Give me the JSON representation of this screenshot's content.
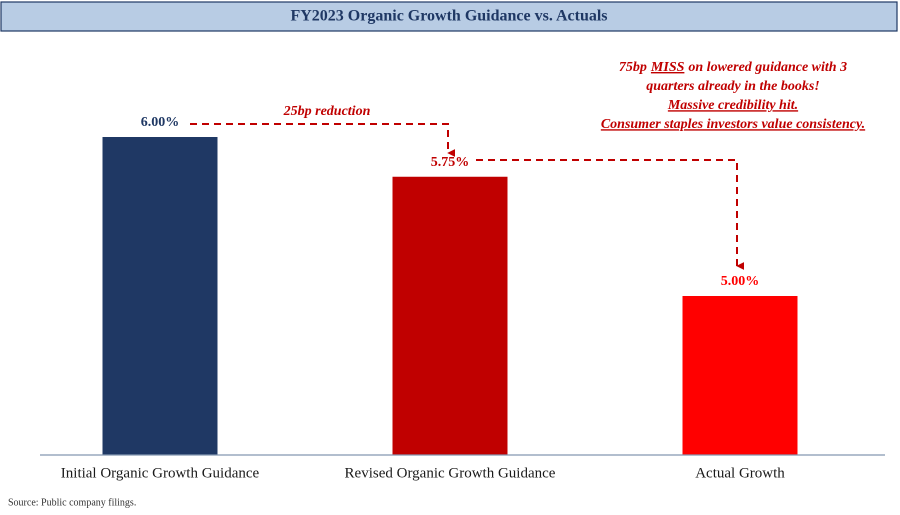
{
  "chart_data": {
    "type": "bar",
    "title": "FY2023 Organic Growth Guidance vs. Actuals",
    "categories": [
      "Initial Organic Growth Guidance",
      "Revised Organic Growth Guidance",
      "Actual Growth"
    ],
    "values": [
      6.0,
      5.75,
      5.0
    ],
    "value_labels": [
      "6.00%",
      "5.75%",
      "5.00%"
    ],
    "colors": [
      "#1f3864",
      "#c00000",
      "#ff0000"
    ],
    "ylim": [
      4,
      6.5
    ],
    "arrow_label": "25bp reduction",
    "annotation": {
      "line1": [
        "75bp",
        "MISS",
        "on lowered guidance with 3"
      ],
      "line2": "quarters already in the books!",
      "line3": "Massive credibility hit.",
      "line4": "Consumer staples investors value consistency."
    },
    "source": "Source: Public company filings."
  }
}
